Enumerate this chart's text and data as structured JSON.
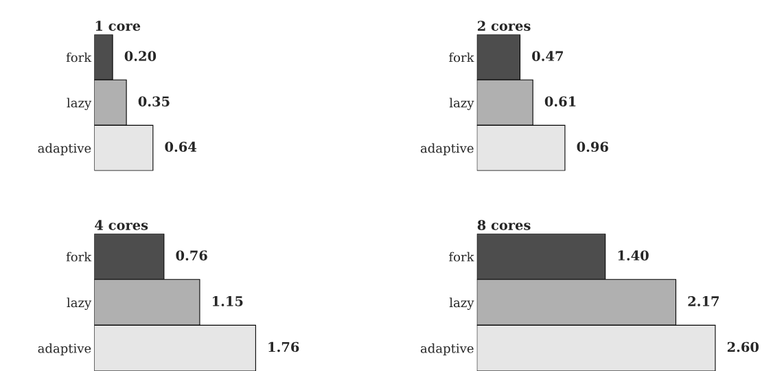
{
  "chart_data": [
    {
      "type": "bar",
      "orientation": "horizontal",
      "title": "1 core",
      "categories": [
        "fork",
        "lazy",
        "adaptive"
      ],
      "values": [
        0.2,
        0.35,
        0.64
      ],
      "value_labels": [
        "0.20",
        "0.35",
        "0.64"
      ],
      "colors": [
        "#4d4d4d",
        "#b0b0b0",
        "#e6e6e6"
      ],
      "tick_labels": "y"
    },
    {
      "type": "bar",
      "orientation": "horizontal",
      "title": "2 cores",
      "categories": [
        "fork",
        "lazy",
        "adaptive"
      ],
      "values": [
        0.47,
        0.61,
        0.96
      ],
      "value_labels": [
        "0.47",
        "0.61",
        "0.96"
      ],
      "colors": [
        "#4d4d4d",
        "#b0b0b0",
        "#e6e6e6"
      ],
      "tick_labels": "y"
    },
    {
      "type": "bar",
      "orientation": "horizontal",
      "title": "4 cores",
      "categories": [
        "fork",
        "lazy",
        "adaptive"
      ],
      "values": [
        0.76,
        1.15,
        1.76
      ],
      "value_labels": [
        "0.76",
        "1.15",
        "1.76"
      ],
      "colors": [
        "#4d4d4d",
        "#b0b0b0",
        "#e6e6e6"
      ],
      "tick_labels": "y"
    },
    {
      "type": "bar",
      "orientation": "horizontal",
      "title": "8 cores",
      "categories": [
        "fork",
        "lazy",
        "adaptive"
      ],
      "values": [
        1.4,
        2.17,
        2.6
      ],
      "value_labels": [
        "1.40",
        "2.17",
        "2.60"
      ],
      "colors": [
        "#4d4d4d",
        "#b0b0b0",
        "#e6e6e6"
      ],
      "tick_labels": "y"
    }
  ]
}
